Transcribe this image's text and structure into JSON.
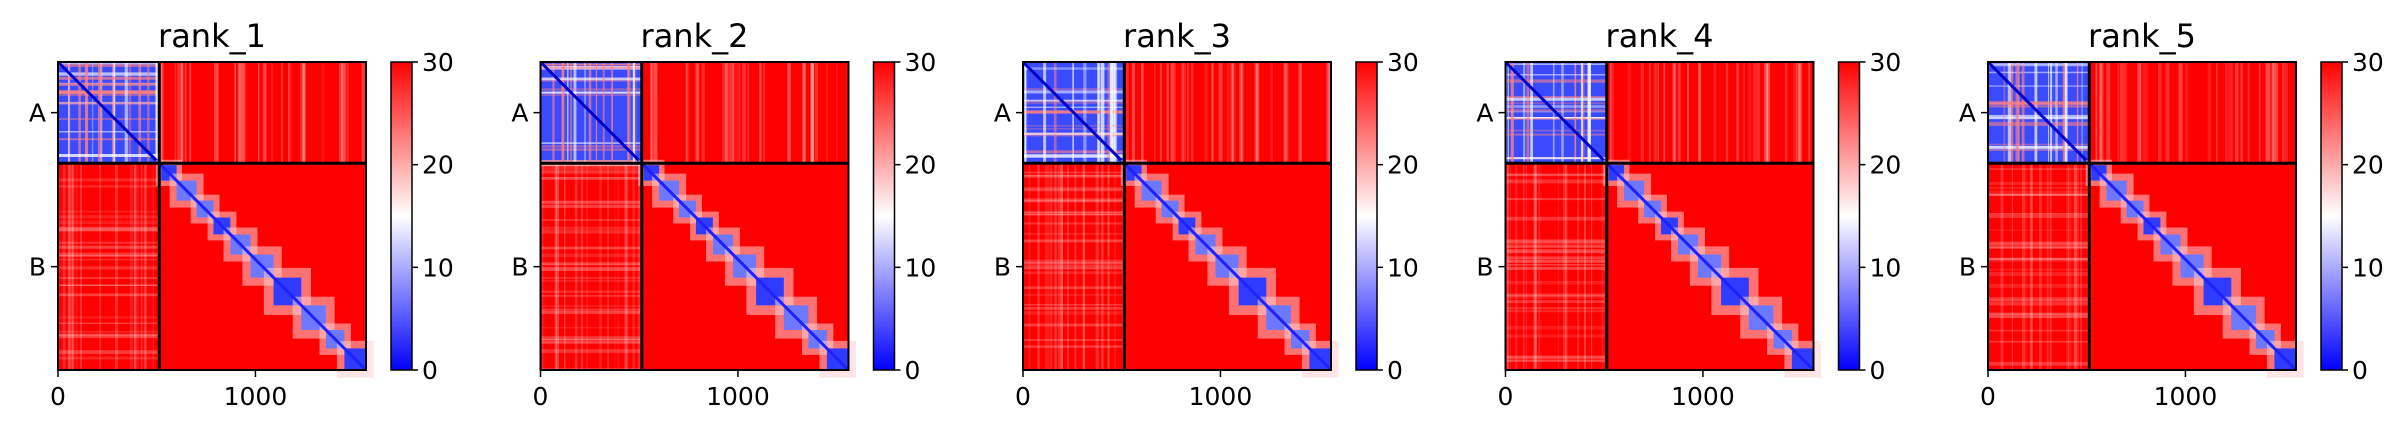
{
  "chart_data": [
    {
      "type": "heatmap",
      "title": "rank_1",
      "xticks": [
        0,
        1000
      ],
      "yticks": [
        "A",
        "B"
      ],
      "xlim": [
        0,
        1560
      ],
      "chain_boundary": 513,
      "colorbar": {
        "min": 0,
        "max": 30,
        "ticks": [
          0,
          10,
          20,
          30
        ],
        "colors": [
          "#0000ff",
          "#ffffff",
          "#ff0000"
        ]
      }
    },
    {
      "type": "heatmap",
      "title": "rank_2",
      "xticks": [
        0,
        1000
      ],
      "yticks": [
        "A",
        "B"
      ],
      "xlim": [
        0,
        1560
      ],
      "chain_boundary": 513,
      "colorbar": {
        "min": 0,
        "max": 30,
        "ticks": [
          0,
          10,
          20,
          30
        ],
        "colors": [
          "#0000ff",
          "#ffffff",
          "#ff0000"
        ]
      }
    },
    {
      "type": "heatmap",
      "title": "rank_3",
      "xticks": [
        0,
        1000
      ],
      "yticks": [
        "A",
        "B"
      ],
      "xlim": [
        0,
        1560
      ],
      "chain_boundary": 513,
      "colorbar": {
        "min": 0,
        "max": 30,
        "ticks": [
          0,
          10,
          20,
          30
        ],
        "colors": [
          "#0000ff",
          "#ffffff",
          "#ff0000"
        ]
      }
    },
    {
      "type": "heatmap",
      "title": "rank_4",
      "xticks": [
        0,
        1000
      ],
      "yticks": [
        "A",
        "B"
      ],
      "xlim": [
        0,
        1560
      ],
      "chain_boundary": 513,
      "colorbar": {
        "min": 0,
        "max": 30,
        "ticks": [
          0,
          10,
          20,
          30
        ],
        "colors": [
          "#0000ff",
          "#ffffff",
          "#ff0000"
        ]
      }
    },
    {
      "type": "heatmap",
      "title": "rank_5",
      "xticks": [
        0,
        1000
      ],
      "yticks": [
        "A",
        "B"
      ],
      "xlim": [
        0,
        1560
      ],
      "chain_boundary": 513,
      "colorbar": {
        "min": 0,
        "max": 30,
        "ticks": [
          0,
          10,
          20,
          30
        ],
        "colors": [
          "#0000ff",
          "#ffffff",
          "#ff0000"
        ]
      }
    }
  ]
}
